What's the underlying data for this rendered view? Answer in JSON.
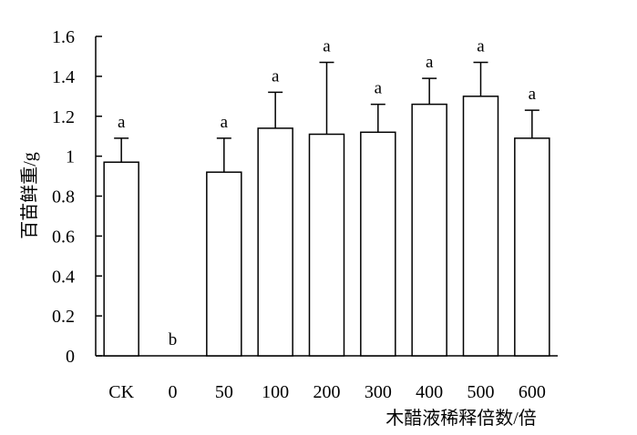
{
  "chart_data": {
    "type": "bar",
    "categories": [
      "CK",
      "0",
      "50",
      "100",
      "200",
      "300",
      "400",
      "500",
      "600"
    ],
    "values": [
      0.97,
      0.0,
      0.92,
      1.14,
      1.11,
      1.12,
      1.26,
      1.3,
      1.09
    ],
    "error_upper": [
      0.12,
      0.0,
      0.17,
      0.18,
      0.36,
      0.14,
      0.13,
      0.17,
      0.14
    ],
    "significance": [
      "a",
      "b",
      "a",
      "a",
      "a",
      "a",
      "a",
      "a",
      "a"
    ],
    "title": "",
    "xlabel": "木醋液稀释倍数/倍",
    "ylabel": "百苗鲜重/g",
    "ylim": [
      0,
      1.6
    ],
    "yticks": [
      "0",
      "0.2",
      "0.4",
      "0.6",
      "0.8",
      "1",
      "1.2",
      "1.4",
      "1.6"
    ],
    "grid": false,
    "legend": "none",
    "colors": {
      "bar_fill": "#ffffff",
      "bar_stroke": "#000000"
    }
  }
}
